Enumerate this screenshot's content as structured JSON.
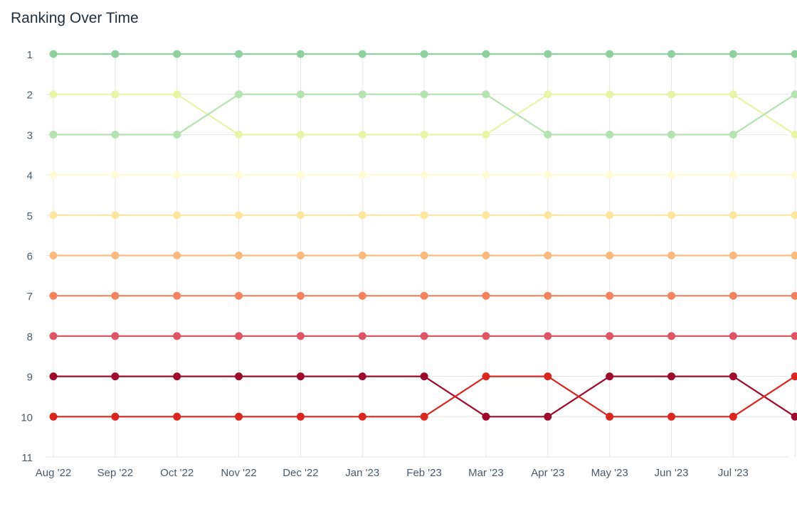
{
  "chart_data": {
    "type": "line",
    "title": "Ranking Over Time",
    "xlabel": "",
    "ylabel": "",
    "x_ticks": [
      "Aug '22",
      "Sep '22",
      "Oct '22",
      "Nov '22",
      "Dec '22",
      "Jan '23",
      "Feb '23",
      "Mar '23",
      "Apr '23",
      "May '23",
      "Jun '23",
      "Jul '23",
      ""
    ],
    "y_ticks": [
      1,
      2,
      3,
      4,
      5,
      6,
      7,
      8,
      9,
      10,
      11
    ],
    "ylim": [
      1,
      11
    ],
    "y_inverted": true,
    "grid": true,
    "legend": "none",
    "series": [
      {
        "color": "#8fd19e",
        "values": [
          1,
          1,
          1,
          1,
          1,
          1,
          1,
          1,
          1,
          1,
          1,
          1,
          1
        ]
      },
      {
        "color": "#e8f5a6",
        "values": [
          2,
          2,
          2,
          3,
          3,
          3,
          3,
          3,
          2,
          2,
          2,
          2,
          3
        ]
      },
      {
        "color": "#b4e2b0",
        "values": [
          3,
          3,
          3,
          2,
          2,
          2,
          2,
          2,
          3,
          3,
          3,
          3,
          2
        ]
      },
      {
        "color": "#fffbd6",
        "values": [
          4,
          4,
          4,
          4,
          4,
          4,
          4,
          4,
          4,
          4,
          4,
          4,
          4
        ]
      },
      {
        "color": "#ffe6a0",
        "values": [
          5,
          5,
          5,
          5,
          5,
          5,
          5,
          5,
          5,
          5,
          5,
          5,
          5
        ]
      },
      {
        "color": "#fbba7d",
        "values": [
          6,
          6,
          6,
          6,
          6,
          6,
          6,
          6,
          6,
          6,
          6,
          6,
          6
        ]
      },
      {
        "color": "#f5825e",
        "values": [
          7,
          7,
          7,
          7,
          7,
          7,
          7,
          7,
          7,
          7,
          7,
          7,
          7
        ]
      },
      {
        "color": "#de5566",
        "values": [
          8,
          8,
          8,
          8,
          8,
          8,
          8,
          8,
          8,
          8,
          8,
          8,
          8
        ]
      },
      {
        "color": "#9e0a2b",
        "values": [
          9,
          9,
          9,
          9,
          9,
          9,
          9,
          10,
          10,
          9,
          9,
          9,
          10
        ]
      },
      {
        "color": "#d9261f",
        "values": [
          10,
          10,
          10,
          10,
          10,
          10,
          10,
          9,
          9,
          10,
          10,
          10,
          9
        ]
      }
    ]
  }
}
